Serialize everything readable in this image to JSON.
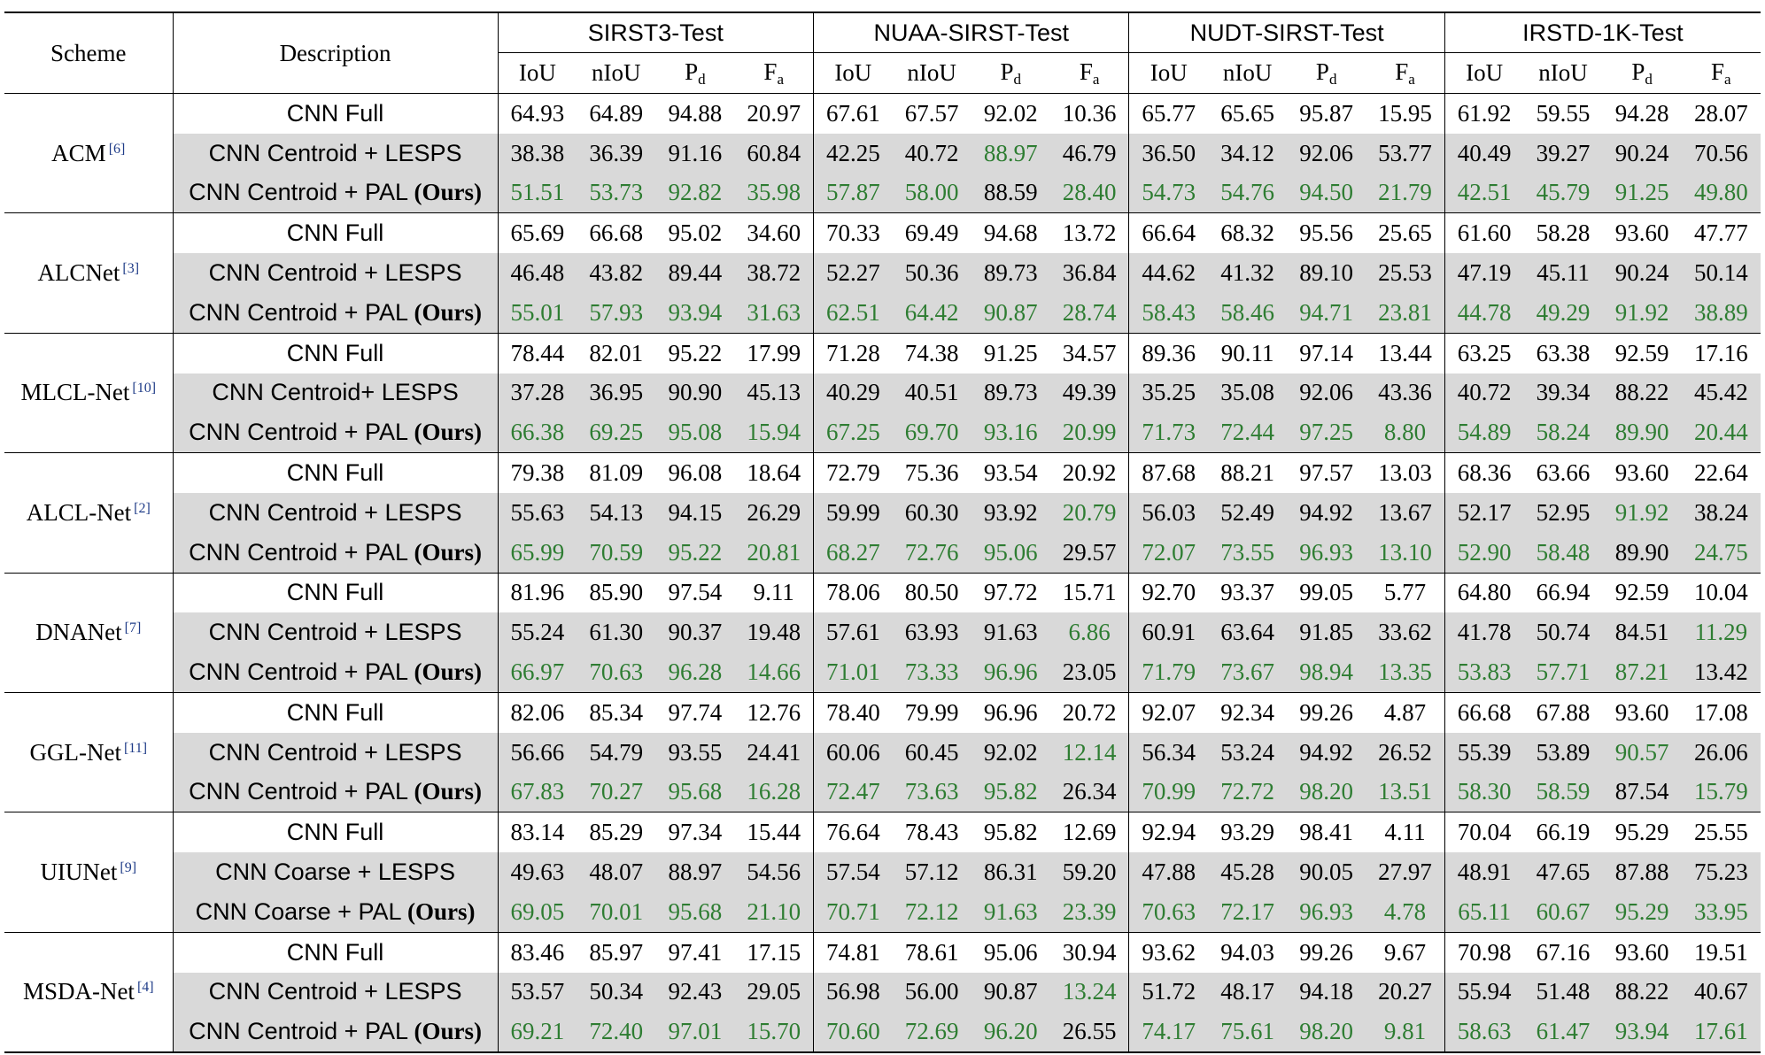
{
  "header": {
    "scheme": "Scheme",
    "description": "Description",
    "datasets": [
      "SIRST3-Test",
      "NUAA-SIRST-Test",
      "NUDT-SIRST-Test",
      "IRSTD-1K-Test"
    ],
    "metrics": [
      {
        "main": "IoU",
        "sub": ""
      },
      {
        "main": "nIoU",
        "sub": ""
      },
      {
        "main": "P",
        "sub": "d"
      },
      {
        "main": "F",
        "sub": "a"
      }
    ]
  },
  "colors": {
    "best": "#2e7d32",
    "shade": "#d9d9d9",
    "citation": "#1f3c88"
  },
  "groups": [
    {
      "scheme": "ACM",
      "ref": "[6]",
      "rows": [
        {
          "desc": "CNN Full",
          "ours": false,
          "values": [
            "64.93",
            "64.89",
            "94.88",
            "20.97",
            "67.61",
            "67.57",
            "92.02",
            "10.36",
            "65.77",
            "65.65",
            "95.87",
            "15.95",
            "61.92",
            "59.55",
            "94.28",
            "28.07"
          ],
          "best": []
        },
        {
          "desc": "CNN Centroid + LESPS",
          "ours": false,
          "values": [
            "38.38",
            "36.39",
            "91.16",
            "60.84",
            "42.25",
            "40.72",
            "88.97",
            "46.79",
            "36.50",
            "34.12",
            "92.06",
            "53.77",
            "40.49",
            "39.27",
            "90.24",
            "70.56"
          ],
          "best": [
            6
          ]
        },
        {
          "desc": "CNN Centroid + PAL",
          "ours": true,
          "values": [
            "51.51",
            "53.73",
            "92.82",
            "35.98",
            "57.87",
            "58.00",
            "88.59",
            "28.40",
            "54.73",
            "54.76",
            "94.50",
            "21.79",
            "42.51",
            "45.79",
            "91.25",
            "49.80"
          ],
          "best": [
            0,
            1,
            2,
            3,
            4,
            5,
            7,
            8,
            9,
            10,
            11,
            12,
            13,
            14,
            15
          ]
        }
      ]
    },
    {
      "scheme": "ALCNet",
      "ref": "[3]",
      "rows": [
        {
          "desc": "CNN Full",
          "ours": false,
          "values": [
            "65.69",
            "66.68",
            "95.02",
            "34.60",
            "70.33",
            "69.49",
            "94.68",
            "13.72",
            "66.64",
            "68.32",
            "95.56",
            "25.65",
            "61.60",
            "58.28",
            "93.60",
            "47.77"
          ],
          "best": []
        },
        {
          "desc": "CNN Centroid + LESPS",
          "ours": false,
          "values": [
            "46.48",
            "43.82",
            "89.44",
            "38.72",
            "52.27",
            "50.36",
            "89.73",
            "36.84",
            "44.62",
            "41.32",
            "89.10",
            "25.53",
            "47.19",
            "45.11",
            "90.24",
            "50.14"
          ],
          "best": []
        },
        {
          "desc": "CNN Centroid + PAL",
          "ours": true,
          "values": [
            "55.01",
            "57.93",
            "93.94",
            "31.63",
            "62.51",
            "64.42",
            "90.87",
            "28.74",
            "58.43",
            "58.46",
            "94.71",
            "23.81",
            "44.78",
            "49.29",
            "91.92",
            "38.89"
          ],
          "best": [
            0,
            1,
            2,
            3,
            4,
            5,
            6,
            7,
            8,
            9,
            10,
            11,
            12,
            13,
            14,
            15
          ]
        }
      ]
    },
    {
      "scheme": "MLCL-Net",
      "ref": "[10]",
      "rows": [
        {
          "desc": "CNN Full",
          "ours": false,
          "values": [
            "78.44",
            "82.01",
            "95.22",
            "17.99",
            "71.28",
            "74.38",
            "91.25",
            "34.57",
            "89.36",
            "90.11",
            "97.14",
            "13.44",
            "63.25",
            "63.38",
            "92.59",
            "17.16"
          ],
          "best": []
        },
        {
          "desc": "CNN Centroid+ LESPS",
          "ours": false,
          "values": [
            "37.28",
            "36.95",
            "90.90",
            "45.13",
            "40.29",
            "40.51",
            "89.73",
            "49.39",
            "35.25",
            "35.08",
            "92.06",
            "43.36",
            "40.72",
            "39.34",
            "88.22",
            "45.42"
          ],
          "best": []
        },
        {
          "desc": "CNN Centroid + PAL",
          "ours": true,
          "values": [
            "66.38",
            "69.25",
            "95.08",
            "15.94",
            "67.25",
            "69.70",
            "93.16",
            "20.99",
            "71.73",
            "72.44",
            "97.25",
            "8.80",
            "54.89",
            "58.24",
            "89.90",
            "20.44"
          ],
          "best": [
            0,
            1,
            2,
            3,
            4,
            5,
            6,
            7,
            8,
            9,
            10,
            11,
            12,
            13,
            14,
            15
          ]
        }
      ]
    },
    {
      "scheme": "ALCL-Net",
      "ref": "[2]",
      "rows": [
        {
          "desc": "CNN Full",
          "ours": false,
          "values": [
            "79.38",
            "81.09",
            "96.08",
            "18.64",
            "72.79",
            "75.36",
            "93.54",
            "20.92",
            "87.68",
            "88.21",
            "97.57",
            "13.03",
            "68.36",
            "63.66",
            "93.60",
            "22.64"
          ],
          "best": []
        },
        {
          "desc": "CNN Centroid + LESPS",
          "ours": false,
          "values": [
            "55.63",
            "54.13",
            "94.15",
            "26.29",
            "59.99",
            "60.30",
            "93.92",
            "20.79",
            "56.03",
            "52.49",
            "94.92",
            "13.67",
            "52.17",
            "52.95",
            "91.92",
            "38.24"
          ],
          "best": [
            7,
            14
          ]
        },
        {
          "desc": "CNN Centroid + PAL",
          "ours": true,
          "values": [
            "65.99",
            "70.59",
            "95.22",
            "20.81",
            "68.27",
            "72.76",
            "95.06",
            "29.57",
            "72.07",
            "73.55",
            "96.93",
            "13.10",
            "52.90",
            "58.48",
            "89.90",
            "24.75"
          ],
          "best": [
            0,
            1,
            2,
            3,
            4,
            5,
            6,
            8,
            9,
            10,
            11,
            12,
            13,
            15
          ]
        }
      ]
    },
    {
      "scheme": "DNANet",
      "ref": "[7]",
      "rows": [
        {
          "desc": "CNN Full",
          "ours": false,
          "values": [
            "81.96",
            "85.90",
            "97.54",
            "9.11",
            "78.06",
            "80.50",
            "97.72",
            "15.71",
            "92.70",
            "93.37",
            "99.05",
            "5.77",
            "64.80",
            "66.94",
            "92.59",
            "10.04"
          ],
          "best": []
        },
        {
          "desc": "CNN Centroid + LESPS",
          "ours": false,
          "values": [
            "55.24",
            "61.30",
            "90.37",
            "19.48",
            "57.61",
            "63.93",
            "91.63",
            "6.86",
            "60.91",
            "63.64",
            "91.85",
            "33.62",
            "41.78",
            "50.74",
            "84.51",
            "11.29"
          ],
          "best": [
            7,
            15
          ]
        },
        {
          "desc": "CNN Centroid + PAL",
          "ours": true,
          "values": [
            "66.97",
            "70.63",
            "96.28",
            "14.66",
            "71.01",
            "73.33",
            "96.96",
            "23.05",
            "71.79",
            "73.67",
            "98.94",
            "13.35",
            "53.83",
            "57.71",
            "87.21",
            "13.42"
          ],
          "best": [
            0,
            1,
            2,
            3,
            4,
            5,
            6,
            8,
            9,
            10,
            11,
            12,
            13,
            14
          ]
        }
      ]
    },
    {
      "scheme": "GGL-Net",
      "ref": "[11]",
      "rows": [
        {
          "desc": "CNN Full",
          "ours": false,
          "values": [
            "82.06",
            "85.34",
            "97.74",
            "12.76",
            "78.40",
            "79.99",
            "96.96",
            "20.72",
            "92.07",
            "92.34",
            "99.26",
            "4.87",
            "66.68",
            "67.88",
            "93.60",
            "17.08"
          ],
          "best": []
        },
        {
          "desc": "CNN Centroid + LESPS",
          "ours": false,
          "values": [
            "56.66",
            "54.79",
            "93.55",
            "24.41",
            "60.06",
            "60.45",
            "92.02",
            "12.14",
            "56.34",
            "53.24",
            "94.92",
            "26.52",
            "55.39",
            "53.89",
            "90.57",
            "26.06"
          ],
          "best": [
            7,
            14
          ]
        },
        {
          "desc": "CNN Centroid + PAL",
          "ours": true,
          "values": [
            "67.83",
            "70.27",
            "95.68",
            "16.28",
            "72.47",
            "73.63",
            "95.82",
            "26.34",
            "70.99",
            "72.72",
            "98.20",
            "13.51",
            "58.30",
            "58.59",
            "87.54",
            "15.79"
          ],
          "best": [
            0,
            1,
            2,
            3,
            4,
            5,
            6,
            8,
            9,
            10,
            11,
            12,
            13,
            15
          ]
        }
      ]
    },
    {
      "scheme": "UIUNet",
      "ref": "[9]",
      "rows": [
        {
          "desc": "CNN Full",
          "ours": false,
          "values": [
            "83.14",
            "85.29",
            "97.34",
            "15.44",
            "76.64",
            "78.43",
            "95.82",
            "12.69",
            "92.94",
            "93.29",
            "98.41",
            "4.11",
            "70.04",
            "66.19",
            "95.29",
            "25.55"
          ],
          "best": []
        },
        {
          "desc": "CNN Coarse + LESPS",
          "ours": false,
          "values": [
            "49.63",
            "48.07",
            "88.97",
            "54.56",
            "57.54",
            "57.12",
            "86.31",
            "59.20",
            "47.88",
            "45.28",
            "90.05",
            "27.97",
            "48.91",
            "47.65",
            "87.88",
            "75.23"
          ],
          "best": []
        },
        {
          "desc": "CNN Coarse + PAL",
          "ours": true,
          "values": [
            "69.05",
            "70.01",
            "95.68",
            "21.10",
            "70.71",
            "72.12",
            "91.63",
            "23.39",
            "70.63",
            "72.17",
            "96.93",
            "4.78",
            "65.11",
            "60.67",
            "95.29",
            "33.95"
          ],
          "best": [
            0,
            1,
            2,
            3,
            4,
            5,
            6,
            7,
            8,
            9,
            10,
            11,
            12,
            13,
            14,
            15
          ]
        }
      ]
    },
    {
      "scheme": "MSDA-Net",
      "ref": "[4]",
      "rows": [
        {
          "desc": "CNN Full",
          "ours": false,
          "values": [
            "83.46",
            "85.97",
            "97.41",
            "17.15",
            "74.81",
            "78.61",
            "95.06",
            "30.94",
            "93.62",
            "94.03",
            "99.26",
            "9.67",
            "70.98",
            "67.16",
            "93.60",
            "19.51"
          ],
          "best": []
        },
        {
          "desc": "CNN Centroid + LESPS",
          "ours": false,
          "values": [
            "53.57",
            "50.34",
            "92.43",
            "29.05",
            "56.98",
            "56.00",
            "90.87",
            "13.24",
            "51.72",
            "48.17",
            "94.18",
            "20.27",
            "55.94",
            "51.48",
            "88.22",
            "40.67"
          ],
          "best": [
            7
          ]
        },
        {
          "desc": "CNN Centroid + PAL",
          "ours": true,
          "values": [
            "69.21",
            "72.40",
            "97.01",
            "15.70",
            "70.60",
            "72.69",
            "96.20",
            "26.55",
            "74.17",
            "75.61",
            "98.20",
            "9.81",
            "58.63",
            "61.47",
            "93.94",
            "17.61"
          ],
          "best": [
            0,
            1,
            2,
            3,
            4,
            5,
            6,
            8,
            9,
            10,
            11,
            12,
            13,
            14,
            15
          ]
        }
      ]
    }
  ],
  "ours_label": "(Ours)"
}
